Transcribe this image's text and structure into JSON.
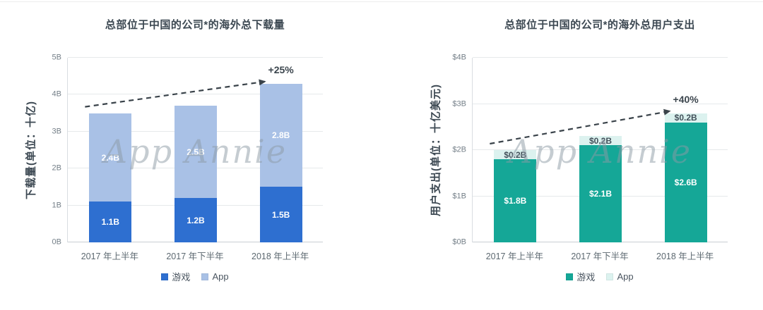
{
  "watermark": "App Annie",
  "chart_data": [
    {
      "type": "bar",
      "stacked": true,
      "title": "总部位于中国的公司*的海外总下载量",
      "ylabel": "下载量(单位：十亿)",
      "xlabel": "",
      "categories": [
        "2017 年上半年",
        "2017 年下半年",
        "2018 年上半年"
      ],
      "series": [
        {
          "name": "游戏",
          "values": [
            1.1,
            1.2,
            1.5
          ],
          "labels": [
            "1.1B",
            "1.2B",
            "1.5B"
          ],
          "color": "#2e6fd0",
          "label_color": "#ffffff"
        },
        {
          "name": "App",
          "values": [
            2.4,
            2.5,
            2.8
          ],
          "labels": [
            "2.4B",
            "2.5B",
            "2.8B"
          ],
          "color": "#a9c1e6",
          "label_color": "#ffffff"
        }
      ],
      "totals": [
        3.5,
        3.7,
        4.3
      ],
      "ylim": [
        0,
        5
      ],
      "y_ticks": [
        "0B",
        "1B",
        "2B",
        "3B",
        "4B",
        "5B"
      ],
      "grid": true,
      "legend_position": "bottom",
      "annotation": {
        "text": "+25%",
        "from_bar": 0,
        "to_bar": 2
      }
    },
    {
      "type": "bar",
      "stacked": true,
      "title": "总部位于中国的公司*的海外总用户支出",
      "ylabel": "用户支出(单位：十亿美元)",
      "xlabel": "",
      "categories": [
        "2017 年上半年",
        "2017 年下半年",
        "2018 年上半年"
      ],
      "series": [
        {
          "name": "游戏",
          "values": [
            1.8,
            2.1,
            2.6
          ],
          "labels": [
            "$1.8B",
            "$2.1B",
            "$2.6B"
          ],
          "color": "#15a797",
          "label_color": "#ffffff"
        },
        {
          "name": "App",
          "values": [
            0.2,
            0.2,
            0.2
          ],
          "labels": [
            "$0.2B",
            "$0.2B",
            "$0.2B"
          ],
          "color": "#dcf2ef",
          "label_color": "#43505a"
        }
      ],
      "totals": [
        2.0,
        2.3,
        2.8
      ],
      "ylim": [
        0,
        4
      ],
      "y_ticks": [
        "$0B",
        "$1B",
        "$2B",
        "$3B",
        "$4B"
      ],
      "grid": true,
      "legend_position": "bottom",
      "annotation": {
        "text": "+40%",
        "from_bar": 0,
        "to_bar": 2
      }
    }
  ],
  "style": {
    "arrow_color": "#3a434a",
    "grid_color": "#e6e9eb",
    "axis_color": "#c9ced2",
    "title_color": "#3c4852",
    "tick_color": "#747f88"
  }
}
